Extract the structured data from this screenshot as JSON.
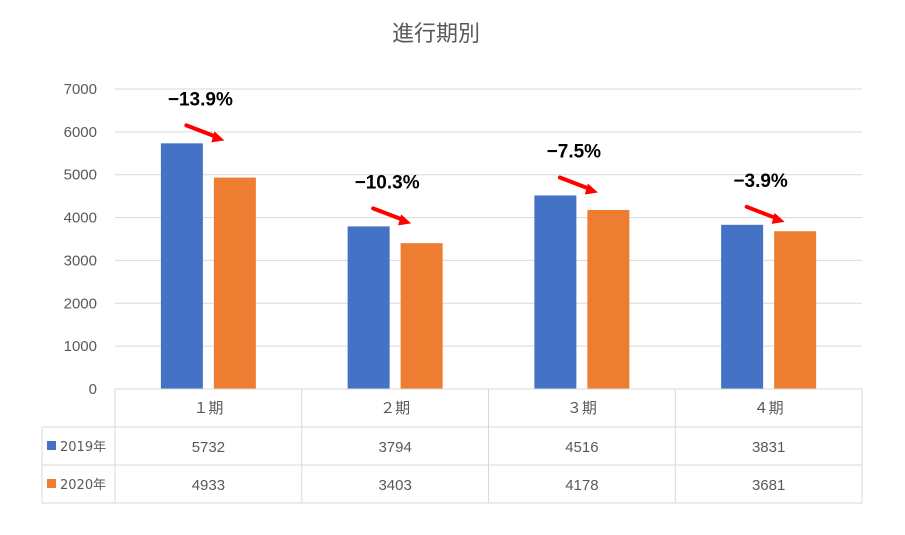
{
  "chart_data": {
    "type": "bar",
    "title": "進行期別",
    "categories": [
      "１期",
      "２期",
      "３期",
      "４期"
    ],
    "series": [
      {
        "name": "2019年",
        "color": "#4472C4",
        "values": [
          5732,
          3794,
          4516,
          3831
        ]
      },
      {
        "name": "2020年",
        "color": "#ED7D31",
        "values": [
          4933,
          3403,
          4178,
          3681
        ]
      }
    ],
    "ylim": [
      0,
      7000
    ],
    "yticks": [
      0,
      1000,
      2000,
      3000,
      4000,
      5000,
      6000,
      7000
    ],
    "grid": true,
    "legend": "data-table",
    "annotations": [
      "−13.9%",
      "−10.3%",
      "−7.5%",
      "−3.9%"
    ],
    "annotation_arrow_color": "#FF0000"
  }
}
